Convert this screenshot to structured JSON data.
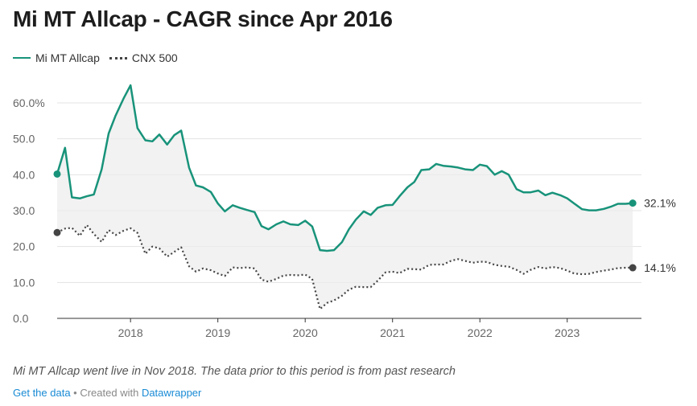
{
  "chart_data": {
    "type": "line",
    "title": "Mi MT Allcap - CAGR since Apr 2016",
    "xlabel": "",
    "ylabel": "",
    "ylim": [
      0,
      60
    ],
    "y_ticks": [
      "60.0%",
      "50.0",
      "40.0",
      "30.0",
      "20.0",
      "10.0",
      "0.0"
    ],
    "y_tick_values": [
      60,
      50,
      40,
      30,
      20,
      10,
      0
    ],
    "xlim": [
      2017.16,
      2023.85
    ],
    "x_ticks": [
      "2018",
      "2019",
      "2020",
      "2021",
      "2022",
      "2023"
    ],
    "x_tick_values": [
      2018,
      2019,
      2020,
      2021,
      2022,
      2023
    ],
    "grid": true,
    "legend_position": "top-left",
    "shaded_between_series": true,
    "series": [
      {
        "name": "Mi MT Allcap",
        "color": "#18937a",
        "style": "solid",
        "end_label": "32.1%",
        "x": [
          2017.16,
          2017.25,
          2017.33,
          2017.42,
          2017.5,
          2017.58,
          2017.67,
          2017.75,
          2017.83,
          2017.92,
          2018.0,
          2018.08,
          2018.17,
          2018.25,
          2018.33,
          2018.42,
          2018.5,
          2018.58,
          2018.67,
          2018.75,
          2018.83,
          2018.92,
          2019.0,
          2019.08,
          2019.17,
          2019.25,
          2019.33,
          2019.42,
          2019.5,
          2019.58,
          2019.67,
          2019.75,
          2019.83,
          2019.92,
          2020.0,
          2020.08,
          2020.17,
          2020.25,
          2020.33,
          2020.42,
          2020.5,
          2020.58,
          2020.67,
          2020.75,
          2020.83,
          2020.92,
          2021.0,
          2021.08,
          2021.17,
          2021.25,
          2021.33,
          2021.42,
          2021.5,
          2021.58,
          2021.67,
          2021.75,
          2021.83,
          2021.92,
          2022.0,
          2022.08,
          2022.17,
          2022.25,
          2022.33,
          2022.42,
          2022.5,
          2022.58,
          2022.67,
          2022.75,
          2022.83,
          2022.92,
          2023.0,
          2023.08,
          2023.17,
          2023.25,
          2023.33,
          2023.42,
          2023.5,
          2023.58,
          2023.67,
          2023.75
        ],
        "values": [
          40.2,
          47.5,
          33.7,
          33.4,
          34.0,
          34.5,
          41.5,
          51.5,
          56.5,
          61.2,
          64.9,
          53.0,
          49.6,
          49.3,
          51.2,
          48.4,
          51.0,
          52.3,
          42.0,
          37.0,
          36.5,
          35.2,
          32.0,
          29.8,
          31.5,
          30.8,
          30.2,
          29.6,
          25.7,
          24.8,
          26.2,
          27.0,
          26.2,
          26.0,
          27.2,
          25.6,
          19.0,
          18.8,
          19.0,
          21.2,
          24.8,
          27.5,
          29.8,
          28.8,
          30.8,
          31.5,
          31.6,
          34.0,
          36.5,
          38.0,
          41.3,
          41.5,
          43.0,
          42.5,
          42.3,
          42.0,
          41.5,
          41.3,
          42.8,
          42.4,
          40.0,
          41.0,
          40.0,
          36.0,
          35.1,
          35.1,
          35.6,
          34.3,
          35.0,
          34.3,
          33.4,
          32.0,
          30.4,
          30.1,
          30.1,
          30.5,
          31.1,
          31.9,
          31.9,
          32.1
        ]
      },
      {
        "name": "CNX 500",
        "color": "#444444",
        "style": "dotted",
        "end_label": "14.1%",
        "x": [
          2017.16,
          2017.25,
          2017.33,
          2017.42,
          2017.5,
          2017.58,
          2017.67,
          2017.75,
          2017.83,
          2017.92,
          2018.0,
          2018.08,
          2018.17,
          2018.25,
          2018.33,
          2018.42,
          2018.5,
          2018.58,
          2018.67,
          2018.75,
          2018.83,
          2018.92,
          2019.0,
          2019.08,
          2019.17,
          2019.25,
          2019.33,
          2019.42,
          2019.5,
          2019.58,
          2019.67,
          2019.75,
          2019.83,
          2019.92,
          2020.0,
          2020.08,
          2020.17,
          2020.25,
          2020.33,
          2020.42,
          2020.5,
          2020.58,
          2020.67,
          2020.75,
          2020.83,
          2020.92,
          2021.0,
          2021.08,
          2021.17,
          2021.25,
          2021.33,
          2021.42,
          2021.5,
          2021.58,
          2021.67,
          2021.75,
          2021.83,
          2021.92,
          2022.0,
          2022.08,
          2022.17,
          2022.25,
          2022.33,
          2022.42,
          2022.5,
          2022.58,
          2022.67,
          2022.75,
          2022.83,
          2022.92,
          2023.0,
          2023.08,
          2023.17,
          2023.25,
          2023.33,
          2023.42,
          2023.5,
          2023.58,
          2023.67,
          2023.75
        ],
        "values": [
          23.9,
          25.0,
          25.2,
          23.0,
          26.0,
          23.5,
          21.3,
          24.6,
          23.2,
          24.4,
          25.1,
          23.8,
          18.0,
          20.0,
          19.5,
          17.2,
          18.5,
          19.8,
          14.5,
          13.0,
          13.9,
          13.4,
          12.5,
          11.8,
          14.2,
          14.0,
          14.2,
          13.9,
          10.8,
          10.2,
          11.0,
          11.9,
          12.1,
          12.0,
          12.2,
          11.0,
          2.6,
          4.3,
          5.0,
          6.3,
          8.0,
          8.8,
          8.7,
          8.7,
          10.5,
          12.8,
          13.0,
          12.6,
          13.8,
          13.7,
          13.6,
          14.9,
          15.0,
          15.0,
          16.0,
          16.5,
          16.0,
          15.5,
          15.8,
          15.7,
          14.9,
          14.6,
          14.4,
          13.5,
          12.4,
          13.5,
          14.3,
          13.9,
          14.3,
          14.0,
          13.3,
          12.5,
          12.3,
          12.4,
          12.9,
          13.3,
          13.6,
          14.0,
          14.1,
          14.1
        ]
      }
    ]
  },
  "legend": {
    "items": [
      {
        "label": "Mi MT Allcap"
      },
      {
        "label": "CNX 500"
      }
    ]
  },
  "note": "Mi MT Allcap went live in Nov 2018. The data prior to this period is from past research",
  "footer": {
    "link_label": "Get the data",
    "separator": " • Created with ",
    "brand": "Datawrapper"
  }
}
